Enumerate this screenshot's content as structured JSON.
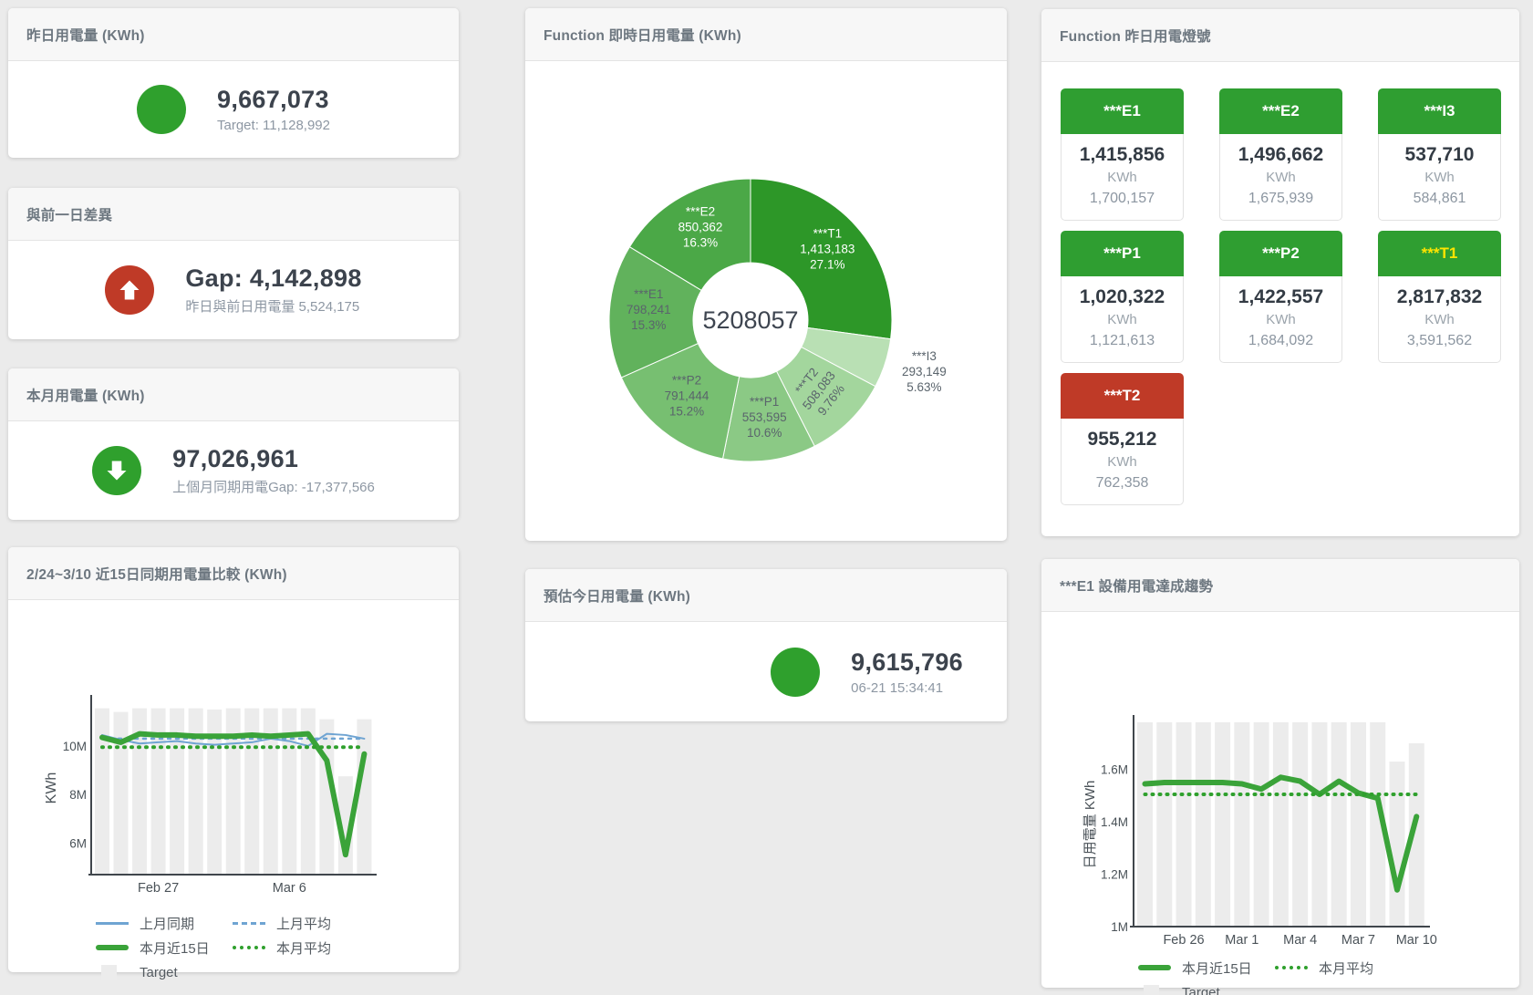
{
  "colors": {
    "green": "#2fa02d",
    "red": "#bf3a27",
    "blue": "#6fa4d2",
    "target_bar": "#ececec",
    "axis": "#40464c"
  },
  "panels": {
    "yesterday": {
      "title": "昨日用電量 (KWh)",
      "value": "9,667,073",
      "subtitle": "Target: 11,128,992",
      "icon_color": "#2fa02d",
      "arrow": "none"
    },
    "gap": {
      "title": "與前一日差異",
      "value": "Gap: 4,142,898",
      "subtitle": "昨日與前日用電量 5,524,175",
      "icon_color": "#bf3a27",
      "arrow": "up"
    },
    "month": {
      "title": "本月用電量 (KWh)",
      "value": "97,026,961",
      "subtitle": "上個月同期用電Gap: -17,377,566",
      "icon_color": "#2fa02d",
      "arrow": "down"
    },
    "estimate": {
      "title": "預估今日用電量 (KWh)",
      "value": "9,615,796",
      "subtitle": "06-21 15:34:41",
      "icon_color": "#2fa02d",
      "arrow": "none"
    }
  },
  "lights": {
    "title": "Function 昨日用電燈號",
    "tiles": [
      {
        "name": "***E1",
        "value": "1,415,856",
        "unit": "KWh",
        "target": "1,700,157",
        "header_bg": "#2f9e31",
        "header_fg": "#ffffff"
      },
      {
        "name": "***E2",
        "value": "1,496,662",
        "unit": "KWh",
        "target": "1,675,939",
        "header_bg": "#2f9e31",
        "header_fg": "#ffffff"
      },
      {
        "name": "***I3",
        "value": "537,710",
        "unit": "KWh",
        "target": "584,861",
        "header_bg": "#2f9e31",
        "header_fg": "#ffffff"
      },
      {
        "name": "***P1",
        "value": "1,020,322",
        "unit": "KWh",
        "target": "1,121,613",
        "header_bg": "#2f9e31",
        "header_fg": "#ffffff"
      },
      {
        "name": "***P2",
        "value": "1,422,557",
        "unit": "KWh",
        "target": "1,684,092",
        "header_bg": "#2f9e31",
        "header_fg": "#ffffff"
      },
      {
        "name": "***T1",
        "value": "2,817,832",
        "unit": "KWh",
        "target": "3,591,562",
        "header_bg": "#2f9e31",
        "header_fg": "#ffe400"
      },
      {
        "name": "***T2",
        "value": "955,212",
        "unit": "KWh",
        "target": "762,358",
        "header_bg": "#bf3a27",
        "header_fg": "#ffffff"
      }
    ]
  },
  "chart_data": [
    {
      "id": "donut",
      "type": "pie",
      "title": "Function 即時日用電量 (KWh)",
      "center_total": "5208057",
      "slices": [
        {
          "name": "***T1",
          "value": 1413183,
          "value_label": "1,413,183",
          "pct": "27.1%",
          "color": "#2d9728",
          "label_color": "#ffffff"
        },
        {
          "name": "***I3",
          "value": 293149,
          "value_label": "293,149",
          "pct": "5.63%",
          "color": "#b9e0b4",
          "label_color": "#5a646c",
          "outside": true
        },
        {
          "name": "***T2",
          "value": 508083,
          "value_label": "508,083",
          "pct": "9.76%",
          "color": "#a3d69d",
          "label_color": "#5a646c",
          "rotate": -52
        },
        {
          "name": "***P1",
          "value": 553595,
          "value_label": "553,595",
          "pct": "10.6%",
          "color": "#8bc985",
          "label_color": "#5a646c"
        },
        {
          "name": "***P2",
          "value": 791444,
          "value_label": "791,444",
          "pct": "15.2%",
          "color": "#77bf71",
          "label_color": "#5a646c"
        },
        {
          "name": "***E1",
          "value": 798241,
          "value_label": "798,241",
          "pct": "15.3%",
          "color": "#61b25c",
          "label_color": "#5a646c"
        },
        {
          "name": "***E2",
          "value": 850362,
          "value_label": "850,362",
          "pct": "16.3%",
          "color": "#4ba847",
          "label_color": "#ffffff"
        }
      ]
    },
    {
      "id": "compare",
      "type": "line",
      "title": "2/24~3/10 近15日同期用電量比較 (KWh)",
      "ylabel": "KWh",
      "unit": "M",
      "ylim": [
        4.7,
        11.8
      ],
      "y_ticks": [
        {
          "v": 6,
          "label": "6M"
        },
        {
          "v": 8,
          "label": "8M"
        },
        {
          "v": 10,
          "label": "10M"
        }
      ],
      "x_ticks": [
        {
          "i": 3,
          "label": "Feb 27"
        },
        {
          "i": 10,
          "label": "Mar 6"
        }
      ],
      "target_bars": [
        11.55,
        11.4,
        11.55,
        11.55,
        11.55,
        11.55,
        11.5,
        11.55,
        11.55,
        11.55,
        11.55,
        11.55,
        11.1,
        8.75,
        11.1
      ],
      "series": [
        {
          "name": "上月同期",
          "color": "#6fa4d2",
          "width": 2,
          "values": [
            10.45,
            10.25,
            10.1,
            10.15,
            10.2,
            10.1,
            10.05,
            10.1,
            10.15,
            10.3,
            10.2,
            10.0,
            10.5,
            10.45,
            10.3
          ]
        },
        {
          "name": "上月平均",
          "color": "#6fa4d2",
          "width": 2.5,
          "dash": "3 6",
          "const": 10.3
        },
        {
          "name": "本月近15日",
          "color": "#3aa339",
          "width": 6,
          "values": [
            10.35,
            10.15,
            10.5,
            10.45,
            10.45,
            10.4,
            10.4,
            10.4,
            10.45,
            10.4,
            10.45,
            10.5,
            9.4,
            5.52,
            9.67
          ]
        },
        {
          "name": "本月平均",
          "color": "#2fa02d",
          "width": 4,
          "dash": "1 7",
          "const": 9.95
        }
      ],
      "legend": [
        {
          "type": "solid",
          "color": "#6fa4d2",
          "label": "上月同期"
        },
        {
          "type": "dashed",
          "color": "#6fa4d2",
          "label": "上月平均"
        },
        {
          "type": "thick",
          "color": "#3aa339",
          "label": "本月近15日"
        },
        {
          "type": "dotted",
          "color": "#2fa02d",
          "label": "本月平均"
        },
        {
          "type": "square",
          "color": "#ececec",
          "label": "Target"
        }
      ]
    },
    {
      "id": "trend",
      "type": "line",
      "title": "***E1 設備用電達成趨勢",
      "ylabel": "日用電量 KWh",
      "unit": "M",
      "ylim": [
        1.0,
        1.78
      ],
      "y_ticks": [
        {
          "v": 1,
          "label": "1M"
        },
        {
          "v": 1.2,
          "label": "1.2M"
        },
        {
          "v": 1.4,
          "label": "1.4M"
        },
        {
          "v": 1.6,
          "label": "1.6M"
        }
      ],
      "x_ticks": [
        {
          "i": 2,
          "label": "Feb 26"
        },
        {
          "i": 5,
          "label": "Mar 1"
        },
        {
          "i": 8,
          "label": "Mar 4"
        },
        {
          "i": 11,
          "label": "Mar 7"
        },
        {
          "i": 14,
          "label": "Mar 10"
        }
      ],
      "target_bars": [
        1.78,
        1.78,
        1.78,
        1.78,
        1.78,
        1.78,
        1.78,
        1.78,
        1.78,
        1.78,
        1.78,
        1.78,
        1.78,
        1.63,
        1.7
      ],
      "series": [
        {
          "name": "本月近15日",
          "color": "#3aa339",
          "width": 6,
          "values": [
            1.545,
            1.55,
            1.55,
            1.55,
            1.55,
            1.545,
            1.525,
            1.57,
            1.555,
            1.505,
            1.555,
            1.51,
            1.49,
            1.14,
            1.42
          ]
        },
        {
          "name": "本月平均",
          "color": "#2fa02d",
          "width": 4,
          "dash": "1 7",
          "const": 1.505
        }
      ],
      "legend": [
        {
          "type": "thick",
          "color": "#3aa339",
          "label": "本月近15日"
        },
        {
          "type": "dotted",
          "color": "#2fa02d",
          "label": "本月平均"
        },
        {
          "type": "square",
          "color": "#ececec",
          "label": "Target"
        }
      ]
    }
  ]
}
